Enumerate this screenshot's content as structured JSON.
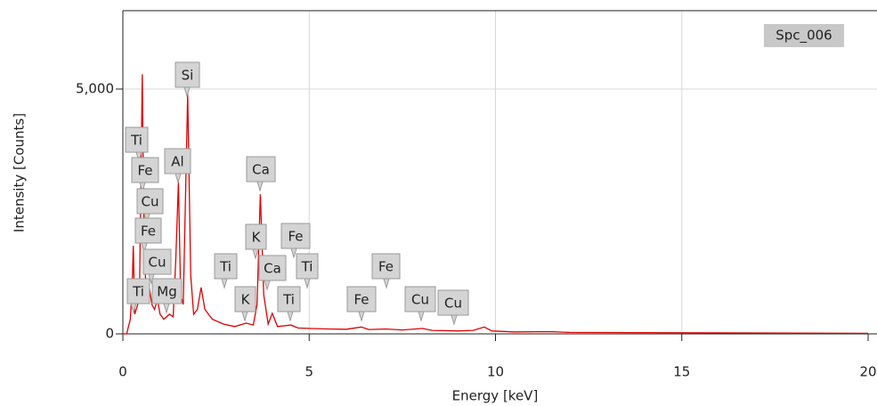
{
  "chart_data": {
    "type": "line",
    "x_label": "Energy [keV]",
    "y_label": "Intensity [Counts]",
    "xlim": [
      0,
      20
    ],
    "ylim": [
      0,
      6600
    ],
    "xticks": [
      0,
      5,
      10,
      15,
      20
    ],
    "yticks": [
      0,
      {
        "value": 5000,
        "label": "5,000"
      }
    ],
    "grid": true,
    "series": [
      {
        "name": "Spc_006",
        "color": "#e00000",
        "x": [
          0,
          0.1,
          0.2,
          0.25,
          0.28,
          0.32,
          0.4,
          0.45,
          0.5,
          0.52,
          0.56,
          0.62,
          0.7,
          0.78,
          0.85,
          0.93,
          1.0,
          1.1,
          1.25,
          1.35,
          1.42,
          1.49,
          1.55,
          1.62,
          1.74,
          1.82,
          1.9,
          2.0,
          2.1,
          2.2,
          2.4,
          2.7,
          3.0,
          3.31,
          3.5,
          3.6,
          3.69,
          3.78,
          3.9,
          4.01,
          4.15,
          4.51,
          4.7,
          5,
          5.5,
          6,
          6.4,
          6.6,
          7.06,
          7.5,
          8.04,
          8.3,
          9,
          9.4,
          9.7,
          9.9,
          10.5,
          11.5,
          12,
          14,
          16,
          18,
          20
        ],
        "values": [
          0,
          0,
          300,
          1000,
          1800,
          400,
          600,
          1000,
          4000,
          5300,
          2500,
          800,
          1000,
          600,
          500,
          700,
          400,
          300,
          400,
          350,
          1500,
          3100,
          800,
          600,
          4900,
          1200,
          400,
          500,
          950,
          500,
          300,
          200,
          150,
          220,
          180,
          600,
          2850,
          800,
          200,
          420,
          150,
          180,
          120,
          110,
          100,
          95,
          140,
          90,
          100,
          80,
          110,
          70,
          60,
          70,
          140,
          60,
          40,
          45,
          30,
          25,
          20,
          15,
          10
        ]
      }
    ],
    "annotations": [
      "Si",
      "Ti",
      "Fe",
      "Al",
      "Cu",
      "Ca",
      "Fe",
      "K",
      "Fe",
      "Cu",
      "Ti",
      "Ca",
      "Ti",
      "Fe",
      "Ti",
      "Mg",
      "K",
      "Ti",
      "Fe",
      "Cu",
      "Cu"
    ]
  }
}
